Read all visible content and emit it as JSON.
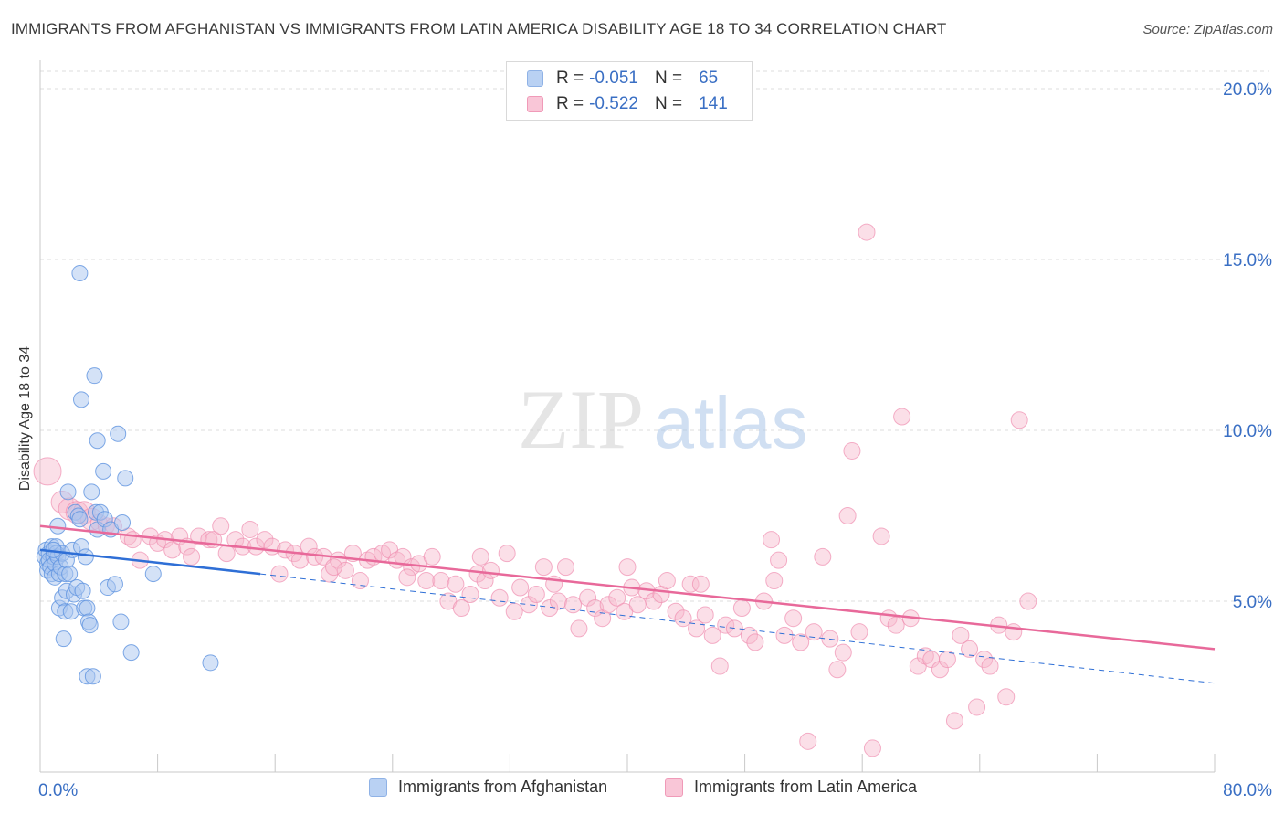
{
  "title": "IMMIGRANTS FROM AFGHANISTAN VS IMMIGRANTS FROM LATIN AMERICA DISABILITY AGE 18 TO 34 CORRELATION CHART",
  "source": "Source: ZipAtlas.com",
  "watermark": {
    "zip": "ZIP",
    "atlas": "atlas"
  },
  "legend_top": [
    {
      "r_label": "R =",
      "r_value": "-0.051",
      "n_label": "N =",
      "n_value": "65"
    },
    {
      "r_label": "R =",
      "r_value": "-0.522",
      "n_label": "N =",
      "n_value": "141"
    }
  ],
  "chart_data": {
    "type": "scatter",
    "title": "IMMIGRANTS FROM AFGHANISTAN VS IMMIGRANTS FROM LATIN AMERICA DISABILITY AGE 18 TO 34 CORRELATION CHART",
    "xlabel": "",
    "ylabel": "Disability Age 18 to 34",
    "xlim": [
      0,
      80
    ],
    "ylim": [
      0,
      20
    ],
    "x_tick_labels": [
      "0.0%",
      "80.0%"
    ],
    "y_tick_labels": [
      "5.0%",
      "10.0%",
      "15.0%",
      "20.0%"
    ],
    "y_ticks": [
      5,
      10,
      15,
      20
    ],
    "grid": true,
    "legend_position": "top-center",
    "colors": {
      "afghanistan": "#6e9fe6",
      "latin_america": "#f08cb0",
      "afghanistan_line": "#2f6fd6",
      "latin_america_line": "#e8699a",
      "tick_text": "#3a6fc4"
    },
    "series": [
      {
        "name": "Immigrants from Afghanistan",
        "r": -0.051,
        "n": 65,
        "trend": {
          "x": [
            0,
            15
          ],
          "y": [
            6.5,
            5.8
          ]
        },
        "trend_extended": {
          "x": [
            15,
            80
          ],
          "y": [
            5.8,
            2.6
          ]
        },
        "points": [
          [
            0.3,
            6.3
          ],
          [
            0.4,
            6.5
          ],
          [
            0.5,
            6.1
          ],
          [
            0.5,
            5.9
          ],
          [
            0.6,
            6.4
          ],
          [
            0.6,
            6.2
          ],
          [
            0.7,
            6.0
          ],
          [
            0.8,
            6.6
          ],
          [
            0.8,
            5.8
          ],
          [
            0.9,
            6.3
          ],
          [
            1.0,
            6.1
          ],
          [
            1.0,
            5.7
          ],
          [
            1.1,
            6.6
          ],
          [
            1.1,
            6.4
          ],
          [
            1.2,
            7.2
          ],
          [
            1.2,
            6.3
          ],
          [
            1.3,
            4.8
          ],
          [
            1.3,
            5.8
          ],
          [
            1.4,
            6.0
          ],
          [
            1.5,
            6.4
          ],
          [
            1.5,
            5.1
          ],
          [
            1.6,
            3.9
          ],
          [
            1.7,
            4.7
          ],
          [
            1.7,
            5.8
          ],
          [
            1.8,
            6.2
          ],
          [
            1.8,
            5.3
          ],
          [
            1.9,
            8.2
          ],
          [
            2.0,
            5.8
          ],
          [
            2.1,
            4.7
          ],
          [
            2.2,
            6.5
          ],
          [
            2.3,
            5.2
          ],
          [
            2.4,
            7.6
          ],
          [
            2.5,
            5.4
          ],
          [
            2.6,
            7.5
          ],
          [
            2.7,
            14.6
          ],
          [
            2.7,
            7.4
          ],
          [
            2.8,
            6.6
          ],
          [
            2.9,
            5.3
          ],
          [
            3.0,
            4.8
          ],
          [
            3.1,
            6.3
          ],
          [
            3.2,
            2.8
          ],
          [
            3.2,
            4.8
          ],
          [
            3.3,
            4.4
          ],
          [
            3.4,
            4.3
          ],
          [
            3.5,
            8.2
          ],
          [
            3.6,
            2.8
          ],
          [
            3.7,
            11.6
          ],
          [
            3.8,
            7.6
          ],
          [
            3.9,
            7.1
          ],
          [
            4.1,
            7.6
          ],
          [
            4.3,
            8.8
          ],
          [
            4.4,
            7.4
          ],
          [
            4.6,
            5.4
          ],
          [
            4.8,
            7.1
          ],
          [
            5.1,
            5.5
          ],
          [
            5.3,
            9.9
          ],
          [
            5.5,
            4.4
          ],
          [
            5.6,
            7.3
          ],
          [
            5.8,
            8.6
          ],
          [
            6.2,
            3.5
          ],
          [
            7.7,
            5.8
          ],
          [
            11.6,
            3.2
          ],
          [
            2.8,
            10.9
          ],
          [
            3.9,
            9.7
          ],
          [
            0.9,
            6.5
          ]
        ]
      },
      {
        "name": "Immigrants from Latin America",
        "r": -0.522,
        "n": 141,
        "trend": {
          "x": [
            0,
            80
          ],
          "y": [
            7.2,
            3.6
          ]
        },
        "points": [
          [
            0.5,
            8.8
          ],
          [
            1.5,
            7.9
          ],
          [
            2.0,
            7.7
          ],
          [
            2.5,
            7.6
          ],
          [
            3.0,
            7.6
          ],
          [
            3.5,
            7.4
          ],
          [
            4.0,
            7.3
          ],
          [
            4.5,
            7.2
          ],
          [
            5.0,
            7.2
          ],
          [
            6.0,
            6.9
          ],
          [
            6.3,
            6.8
          ],
          [
            6.8,
            6.2
          ],
          [
            7.5,
            6.9
          ],
          [
            8.0,
            6.7
          ],
          [
            8.5,
            6.8
          ],
          [
            9.0,
            6.5
          ],
          [
            9.5,
            6.9
          ],
          [
            10.0,
            6.6
          ],
          [
            10.3,
            6.3
          ],
          [
            10.8,
            6.9
          ],
          [
            11.5,
            6.8
          ],
          [
            11.8,
            6.8
          ],
          [
            12.3,
            7.2
          ],
          [
            12.7,
            6.4
          ],
          [
            13.3,
            6.8
          ],
          [
            13.8,
            6.6
          ],
          [
            14.3,
            7.1
          ],
          [
            14.7,
            6.6
          ],
          [
            15.3,
            6.8
          ],
          [
            15.8,
            6.6
          ],
          [
            16.3,
            5.8
          ],
          [
            16.7,
            6.5
          ],
          [
            17.3,
            6.4
          ],
          [
            17.7,
            6.2
          ],
          [
            18.3,
            6.6
          ],
          [
            18.7,
            6.3
          ],
          [
            19.3,
            6.3
          ],
          [
            19.7,
            5.8
          ],
          [
            20.3,
            6.2
          ],
          [
            20.8,
            5.9
          ],
          [
            21.3,
            6.4
          ],
          [
            21.8,
            5.6
          ],
          [
            22.3,
            6.2
          ],
          [
            22.7,
            6.3
          ],
          [
            23.3,
            6.4
          ],
          [
            23.8,
            6.5
          ],
          [
            24.3,
            6.2
          ],
          [
            24.7,
            6.3
          ],
          [
            25.3,
            6.0
          ],
          [
            25.8,
            6.1
          ],
          [
            26.3,
            5.6
          ],
          [
            26.7,
            6.3
          ],
          [
            27.3,
            5.6
          ],
          [
            27.8,
            5.0
          ],
          [
            28.3,
            5.5
          ],
          [
            28.7,
            4.8
          ],
          [
            29.3,
            5.2
          ],
          [
            29.8,
            5.8
          ],
          [
            30.3,
            5.6
          ],
          [
            30.7,
            5.9
          ],
          [
            31.3,
            5.1
          ],
          [
            31.8,
            6.4
          ],
          [
            32.3,
            4.7
          ],
          [
            32.7,
            5.4
          ],
          [
            33.3,
            4.9
          ],
          [
            33.8,
            5.2
          ],
          [
            34.3,
            6.0
          ],
          [
            34.7,
            4.8
          ],
          [
            35.3,
            5.0
          ],
          [
            35.8,
            6.0
          ],
          [
            36.3,
            4.9
          ],
          [
            36.7,
            4.2
          ],
          [
            37.3,
            5.1
          ],
          [
            37.8,
            4.8
          ],
          [
            38.3,
            4.5
          ],
          [
            38.7,
            4.9
          ],
          [
            39.3,
            5.1
          ],
          [
            39.8,
            4.7
          ],
          [
            40.3,
            5.4
          ],
          [
            40.7,
            4.9
          ],
          [
            41.3,
            5.3
          ],
          [
            41.8,
            5.0
          ],
          [
            42.3,
            5.2
          ],
          [
            42.7,
            5.6
          ],
          [
            43.3,
            4.7
          ],
          [
            43.8,
            4.5
          ],
          [
            44.3,
            5.5
          ],
          [
            44.7,
            4.2
          ],
          [
            45.3,
            4.6
          ],
          [
            45.8,
            4.0
          ],
          [
            46.3,
            3.1
          ],
          [
            46.7,
            4.3
          ],
          [
            47.3,
            4.2
          ],
          [
            47.8,
            4.8
          ],
          [
            48.3,
            4.0
          ],
          [
            48.7,
            3.8
          ],
          [
            49.3,
            5.0
          ],
          [
            49.8,
            6.8
          ],
          [
            50.3,
            6.2
          ],
          [
            50.7,
            4.0
          ],
          [
            51.3,
            4.5
          ],
          [
            51.8,
            3.8
          ],
          [
            52.3,
            0.9
          ],
          [
            52.7,
            4.1
          ],
          [
            53.3,
            6.3
          ],
          [
            53.8,
            3.9
          ],
          [
            54.3,
            3.0
          ],
          [
            54.7,
            3.5
          ],
          [
            55.3,
            9.4
          ],
          [
            55.8,
            4.1
          ],
          [
            56.3,
            15.8
          ],
          [
            56.7,
            0.7
          ],
          [
            57.3,
            6.9
          ],
          [
            57.8,
            4.5
          ],
          [
            58.3,
            4.3
          ],
          [
            58.7,
            10.4
          ],
          [
            59.3,
            4.5
          ],
          [
            59.8,
            3.1
          ],
          [
            60.3,
            3.4
          ],
          [
            60.7,
            3.3
          ],
          [
            61.3,
            3.0
          ],
          [
            61.8,
            3.3
          ],
          [
            62.3,
            1.5
          ],
          [
            62.7,
            4.0
          ],
          [
            63.3,
            3.6
          ],
          [
            63.8,
            1.9
          ],
          [
            64.3,
            3.3
          ],
          [
            64.7,
            3.1
          ],
          [
            65.3,
            4.3
          ],
          [
            65.8,
            2.2
          ],
          [
            66.3,
            4.1
          ],
          [
            66.7,
            10.3
          ],
          [
            67.3,
            5.0
          ],
          [
            55.0,
            7.5
          ],
          [
            50.0,
            5.6
          ],
          [
            45.0,
            5.5
          ],
          [
            40.0,
            6.0
          ],
          [
            35.0,
            5.5
          ],
          [
            30.0,
            6.3
          ],
          [
            25.0,
            5.7
          ],
          [
            20.0,
            6.0
          ]
        ]
      }
    ]
  },
  "bottom_legend": [
    "Immigrants from Afghanistan",
    "Immigrants from Latin America"
  ]
}
